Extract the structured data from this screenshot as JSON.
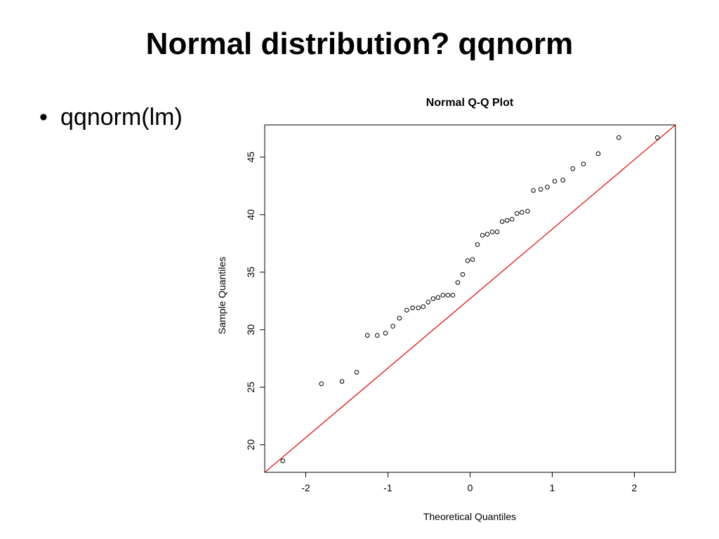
{
  "slide": {
    "title": "Normal distribution? qqnorm",
    "bullets": [
      {
        "marker": "•",
        "text": "qqnorm(lm)"
      }
    ]
  },
  "chart_data": {
    "type": "scatter",
    "title": "Normal Q-Q Plot",
    "xlabel": "Theoretical Quantiles",
    "ylabel": "Sample Quantiles",
    "xlim": [
      -2.5,
      2.5
    ],
    "ylim": [
      17.6,
      47.8
    ],
    "x_ticks": [
      -2,
      -1,
      0,
      1,
      2
    ],
    "y_ticks": [
      20,
      25,
      30,
      35,
      40,
      45
    ],
    "x_tick_labels": [
      "-2",
      "-1",
      "0",
      "1",
      "2"
    ],
    "y_tick_labels": [
      "20",
      "25",
      "30",
      "35",
      "40",
      "45"
    ],
    "grid": false,
    "point_marker": "open-circle",
    "point_color": "#000000",
    "reference_line_color": "#e00000",
    "reference_line": {
      "points": [
        [
          -2.5,
          17.6
        ],
        [
          2.5,
          47.8
        ]
      ]
    },
    "x": [
      -2.28,
      -1.81,
      -1.56,
      -1.38,
      -1.25,
      -1.13,
      -1.03,
      -0.94,
      -0.86,
      -0.77,
      -0.7,
      -0.63,
      -0.57,
      -0.51,
      -0.45,
      -0.39,
      -0.33,
      -0.27,
      -0.21,
      -0.15,
      -0.09,
      -0.03,
      0.03,
      0.09,
      0.15,
      0.21,
      0.27,
      0.33,
      0.39,
      0.45,
      0.51,
      0.57,
      0.63,
      0.7,
      0.77,
      0.86,
      0.94,
      1.03,
      1.13,
      1.25,
      1.38,
      1.56,
      1.81,
      2.28
    ],
    "y": [
      18.6,
      25.3,
      25.5,
      26.3,
      29.5,
      29.5,
      29.7,
      30.3,
      31.0,
      31.7,
      31.9,
      31.9,
      32.0,
      32.4,
      32.7,
      32.8,
      33.0,
      33.0,
      33.0,
      34.1,
      34.8,
      36.0,
      36.1,
      37.4,
      38.2,
      38.3,
      38.5,
      38.5,
      39.4,
      39.5,
      39.6,
      40.1,
      40.2,
      40.3,
      42.1,
      42.2,
      42.4,
      42.9,
      43.0,
      44.0,
      44.4,
      45.3,
      46.7,
      46.7
    ]
  }
}
